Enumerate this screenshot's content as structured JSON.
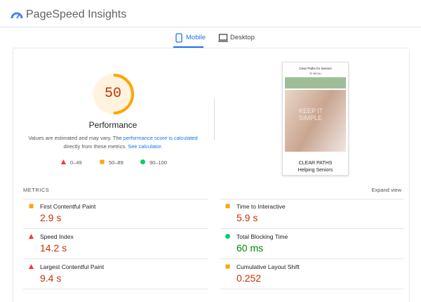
{
  "header": {
    "title": "PageSpeed Insights"
  },
  "tabs": [
    {
      "label": "Mobile",
      "active": true
    },
    {
      "label": "Desktop",
      "active": false
    }
  ],
  "score": {
    "value": 50,
    "label": "Performance",
    "color": "#ffa400"
  },
  "note": {
    "text1": "Values are estimated and may vary. The ",
    "link1": "performance score is calculated",
    "text2": "directly from these metrics. ",
    "link2": "See calculator."
  },
  "legend": [
    {
      "label": "0–49",
      "icon": "triangle",
      "color": "#ff3333"
    },
    {
      "label": "50–89",
      "icon": "square",
      "color": "#ffa400"
    },
    {
      "label": "90–100",
      "icon": "circle",
      "color": "#0cce6b"
    }
  ],
  "preview": {
    "site_title": "Clear Paths for Seniors",
    "menu": "MENU",
    "hero": "KEEP IT SIMPLE",
    "name": "CLEAR PATHS",
    "tagline": "Helping Seniors"
  },
  "metrics": {
    "title": "METRICS",
    "expand": "Expand view",
    "items": [
      {
        "name": "First Contentful Paint",
        "value": "2.9 s",
        "icon": "square",
        "color": "#ffa400",
        "value_color": "#c33300"
      },
      {
        "name": "Time to Interactive",
        "value": "5.9 s",
        "icon": "square",
        "color": "#ffa400",
        "value_color": "#c33300"
      },
      {
        "name": "Speed Index",
        "value": "14.2 s",
        "icon": "triangle",
        "color": "#ff3333",
        "value_color": "#c33300"
      },
      {
        "name": "Total Blocking Time",
        "value": "60 ms",
        "icon": "circle",
        "color": "#0cce6b",
        "value_color": "#008800"
      },
      {
        "name": "Largest Contentful Paint",
        "value": "9.4 s",
        "icon": "triangle",
        "color": "#ff3333",
        "value_color": "#c33300"
      },
      {
        "name": "Cumulative Layout Shift",
        "value": "0.252",
        "icon": "square",
        "color": "#ffa400",
        "value_color": "#c33300"
      }
    ]
  }
}
